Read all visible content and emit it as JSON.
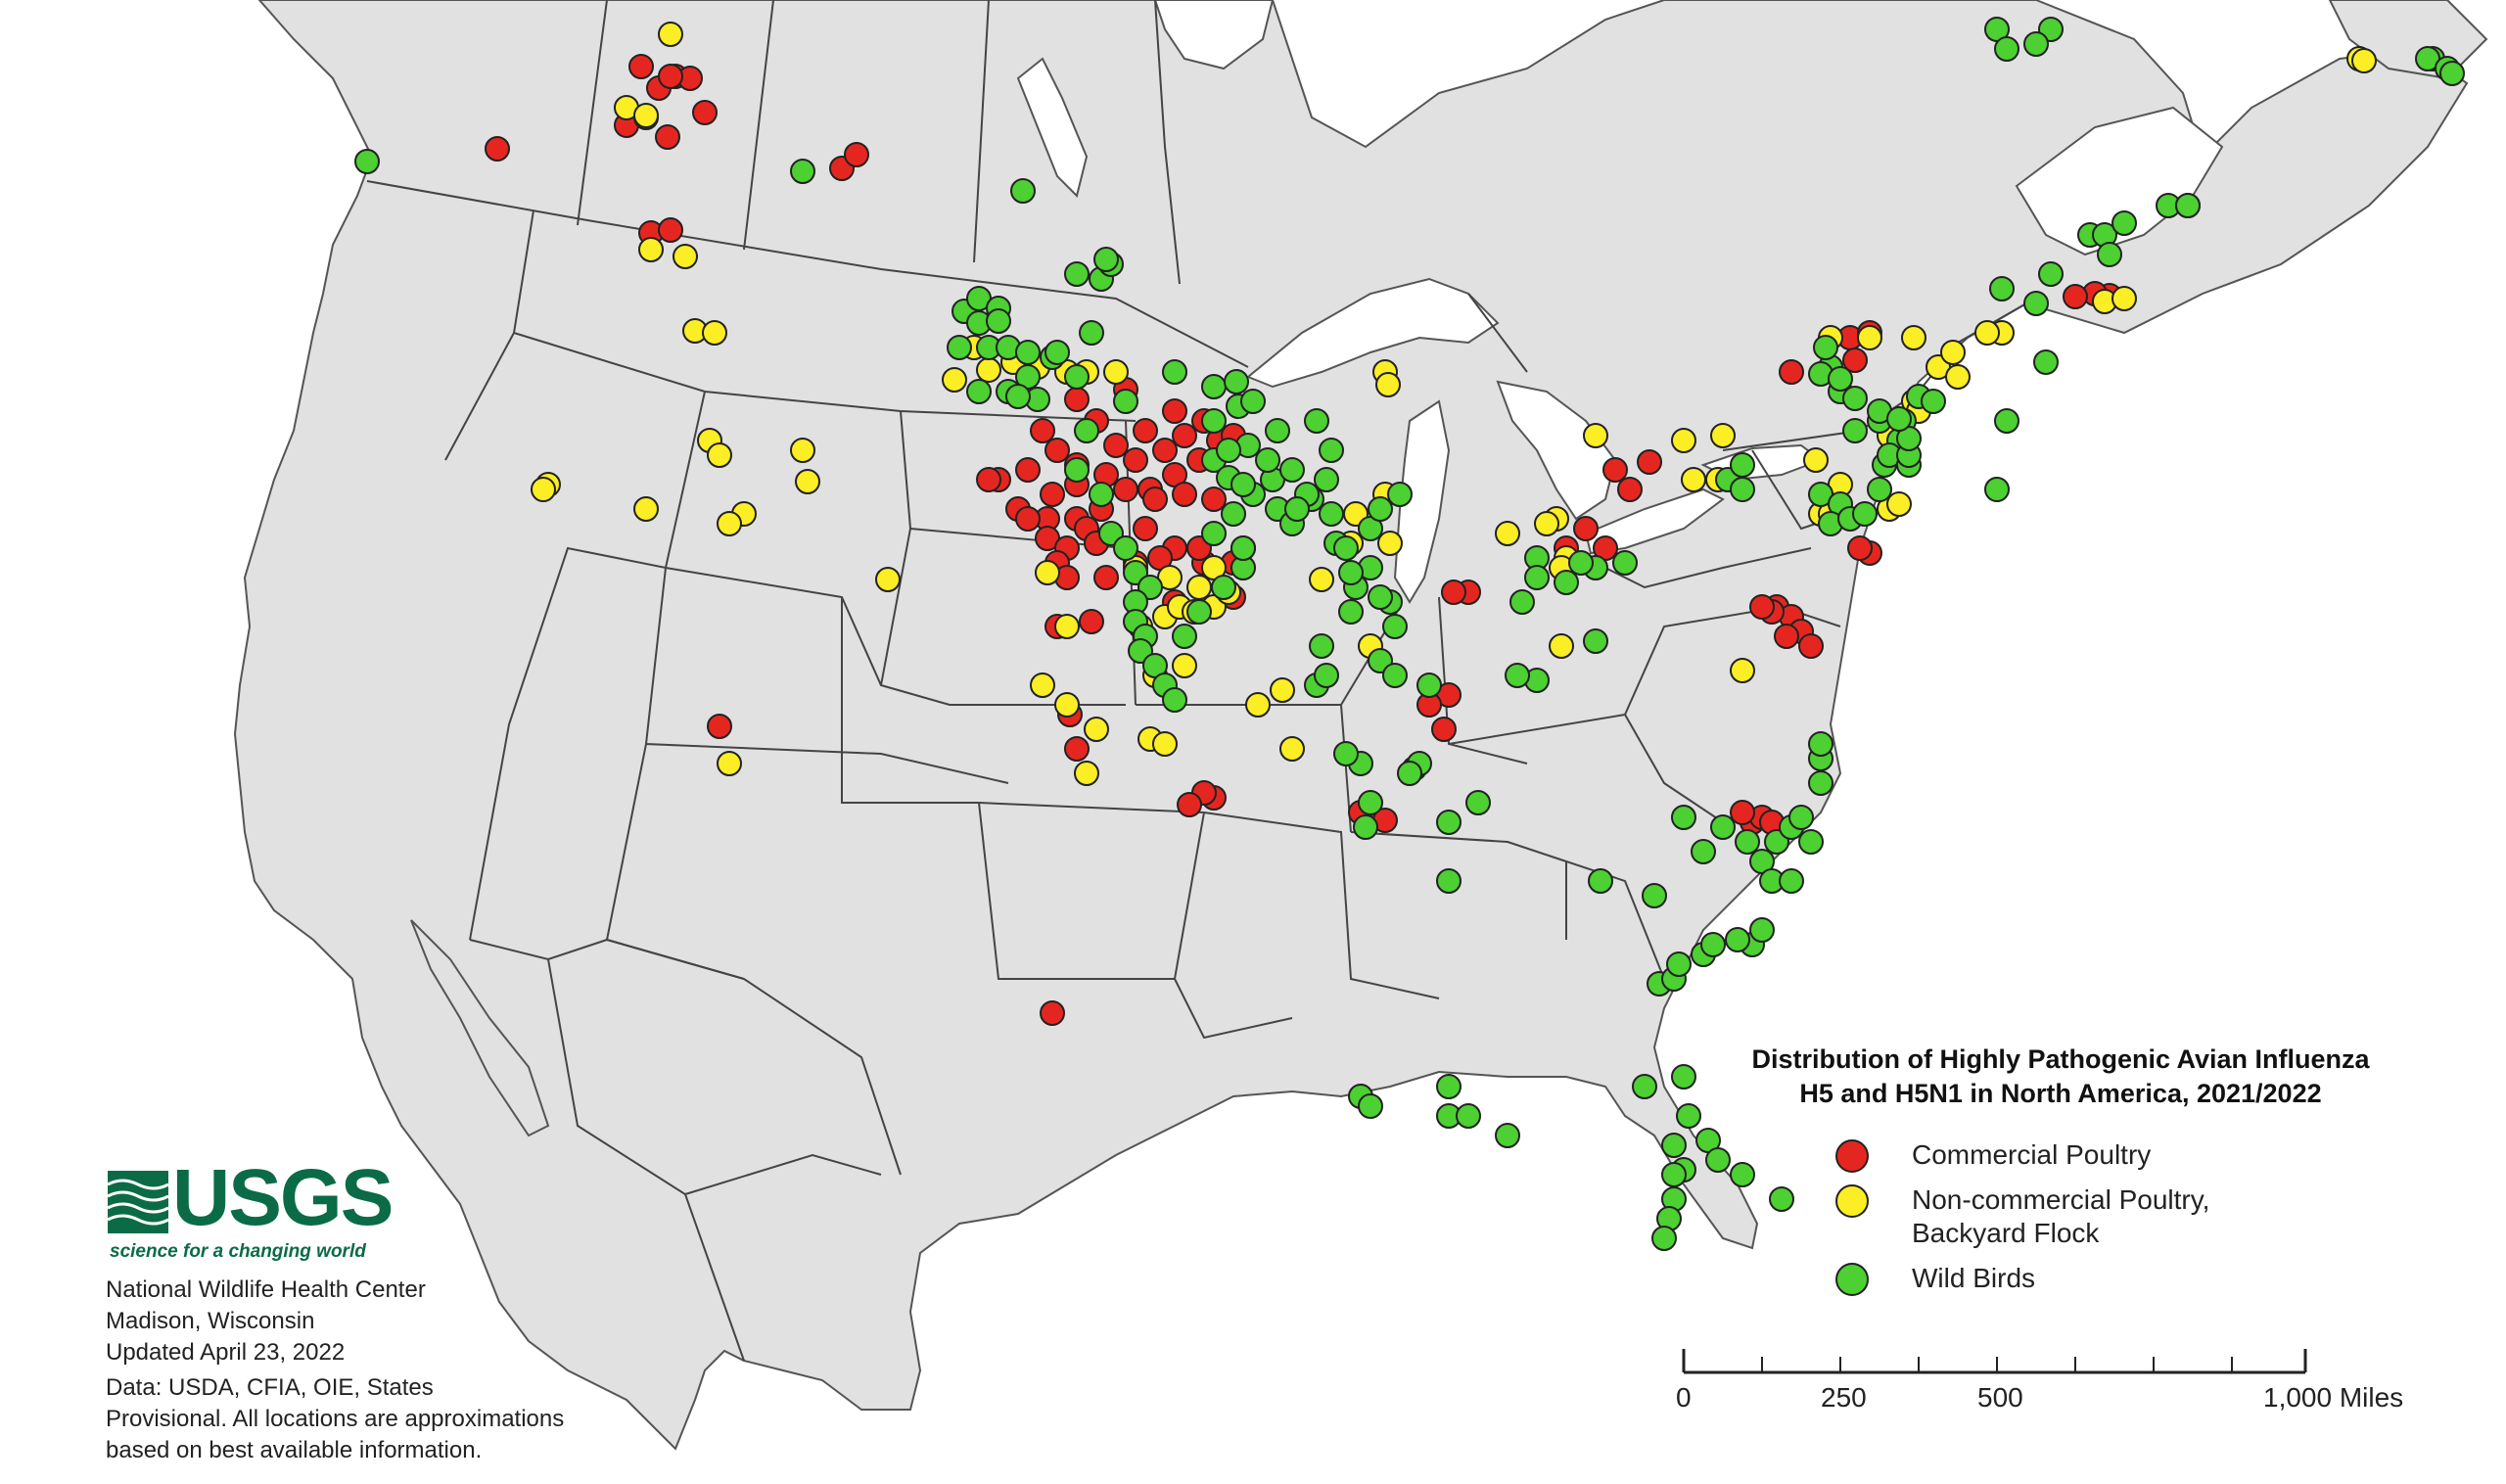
{
  "title": {
    "line1": "Distribution of Highly Pathogenic Avian Influenza",
    "line2": "H5 and H5N1 in North America, 2021/2022"
  },
  "legend": {
    "items": [
      {
        "label": "Commercial Poultry",
        "color": "#e52620"
      },
      {
        "label": "Non-commercial Poultry,\nBackyard Flock",
        "color": "#fbee24"
      },
      {
        "label": "Wild Birds",
        "color": "#4cd032"
      }
    ]
  },
  "logo": {
    "wordmark": "USGS",
    "tagline": "science for a changing world",
    "color": "#0b6b47"
  },
  "credits": {
    "org": "National Wildlife Health Center",
    "location": "Madison, Wisconsin",
    "updated": "Updated April 23, 2022",
    "data_sources": "Data: USDA, CFIA, OIE, States",
    "note_line1": "Provisional. All locations are approximations",
    "note_line2": "based on best available information."
  },
  "scale": {
    "labels": [
      "0",
      "250",
      "500",
      "1,000 Miles"
    ]
  },
  "colors": {
    "land": "#e1e1e1",
    "water": "#ffffff",
    "border": "#444444",
    "commercial": "#e52620",
    "backyard": "#fbee24",
    "wild": "#4cd032"
  }
}
